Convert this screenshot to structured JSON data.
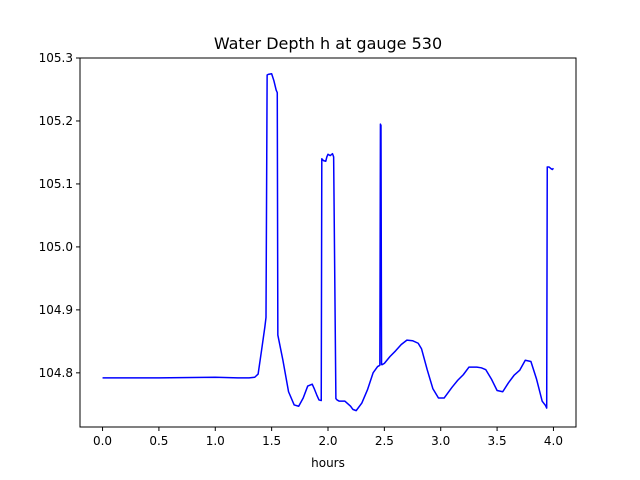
{
  "chart_data": {
    "type": "line",
    "title": "Water Depth h at gauge 530",
    "xlabel": "hours",
    "ylabel": "",
    "xlim": [
      -0.2,
      4.2
    ],
    "ylim": [
      104.714,
      105.3
    ],
    "x_ticks": [
      0.0,
      0.5,
      1.0,
      1.5,
      2.0,
      2.5,
      3.0,
      3.5,
      4.0
    ],
    "x_tick_labels": [
      "0.0",
      "0.5",
      "1.0",
      "1.5",
      "2.0",
      "2.5",
      "3.0",
      "3.5",
      "4.0"
    ],
    "y_ticks": [
      104.8,
      104.9,
      105.0,
      105.1,
      105.2,
      105.3
    ],
    "y_tick_labels": [
      "104.8",
      "104.9",
      "105.0",
      "105.1",
      "105.2",
      "105.3"
    ],
    "grid": false,
    "series": [
      {
        "color": "#0000ff",
        "x": [
          0.0,
          0.5,
          1.0,
          1.2,
          1.3,
          1.35,
          1.38,
          1.41,
          1.44,
          1.45,
          1.46,
          1.47,
          1.5,
          1.52,
          1.54,
          1.55,
          1.555,
          1.6,
          1.65,
          1.7,
          1.74,
          1.78,
          1.82,
          1.86,
          1.88,
          1.9,
          1.92,
          1.94,
          1.945,
          1.96,
          1.98,
          1.99,
          2.0,
          2.02,
          2.04,
          2.05,
          2.07,
          2.08,
          2.1,
          2.15,
          2.2,
          2.22,
          2.25,
          2.3,
          2.35,
          2.4,
          2.44,
          2.46,
          2.465,
          2.47,
          2.475,
          2.48,
          2.5,
          2.55,
          2.6,
          2.65,
          2.7,
          2.75,
          2.8,
          2.83,
          2.88,
          2.93,
          2.98,
          3.03,
          3.1,
          3.15,
          3.2,
          3.25,
          3.32,
          3.36,
          3.4,
          3.45,
          3.5,
          3.55,
          3.6,
          3.65,
          3.7,
          3.75,
          3.8,
          3.85,
          3.9,
          3.93,
          3.94,
          3.945,
          3.96,
          3.98,
          3.99,
          4.0
        ],
        "y": [
          104.792,
          104.792,
          104.793,
          104.792,
          104.792,
          104.793,
          104.798,
          104.835,
          104.873,
          104.888,
          105.273,
          105.274,
          105.275,
          105.264,
          105.249,
          105.245,
          104.86,
          104.82,
          104.77,
          104.749,
          104.747,
          104.76,
          104.779,
          104.782,
          104.774,
          104.765,
          104.757,
          104.756,
          105.14,
          105.137,
          105.136,
          105.143,
          105.147,
          105.145,
          105.148,
          105.143,
          104.759,
          104.757,
          104.755,
          104.755,
          104.747,
          104.742,
          104.74,
          104.752,
          104.773,
          104.8,
          104.81,
          104.812,
          105.195,
          105.193,
          104.813,
          104.813,
          104.815,
          104.826,
          104.835,
          104.845,
          104.852,
          104.851,
          104.847,
          104.838,
          104.805,
          104.775,
          104.76,
          104.76,
          104.777,
          104.788,
          104.797,
          104.809,
          104.809,
          104.808,
          104.805,
          104.79,
          104.772,
          104.77,
          104.784,
          104.796,
          104.804,
          104.82,
          104.818,
          104.79,
          104.755,
          104.748,
          104.744,
          105.127,
          105.127,
          105.124,
          105.123,
          105.125
        ]
      }
    ]
  }
}
